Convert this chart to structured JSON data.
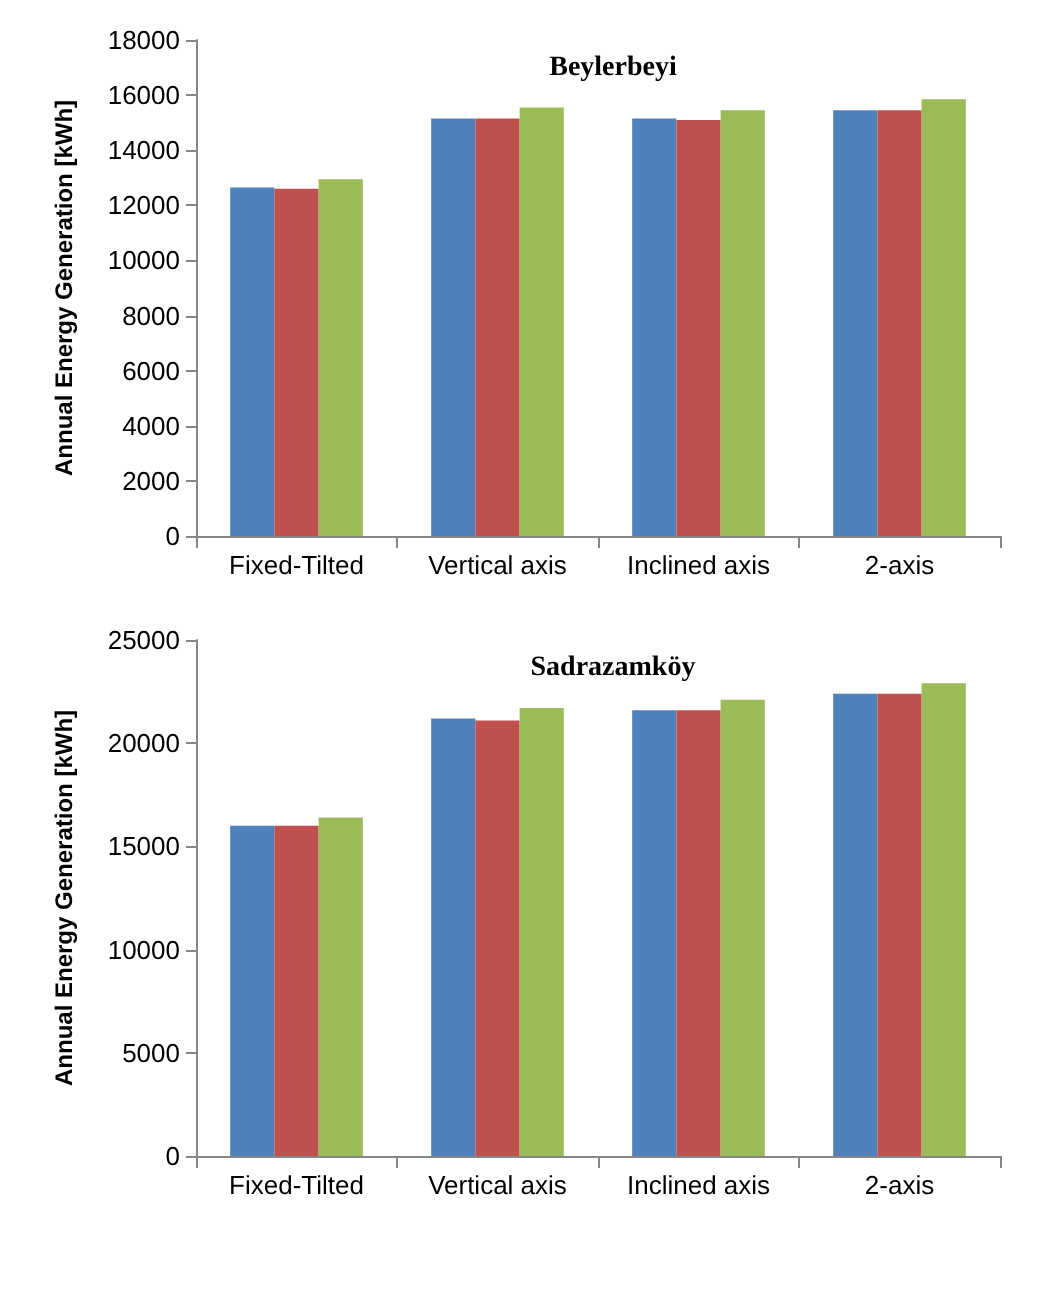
{
  "chart_data": [
    {
      "type": "bar",
      "title": "Beylerbeyi",
      "ylabel": "Annual Energy Generation [kWh]",
      "categories": [
        "Fixed-Tilted",
        "Vertical axis",
        "Inclined axis",
        "2-axis"
      ],
      "series": [
        {
          "color": "#4f81bd",
          "values": [
            12650,
            15150,
            15150,
            15450
          ]
        },
        {
          "color": "#c0504d",
          "values": [
            12600,
            15150,
            15100,
            15450
          ]
        },
        {
          "color": "#9bbb59",
          "values": [
            12950,
            15550,
            15450,
            15850
          ]
        }
      ],
      "ylim": [
        0,
        18000
      ],
      "yticks": [
        0,
        2000,
        4000,
        6000,
        8000,
        10000,
        12000,
        14000,
        16000,
        18000
      ],
      "grid": false
    },
    {
      "type": "bar",
      "title": "Sadrazamköy",
      "ylabel": "Annual Energy Generation [kWh]",
      "categories": [
        "Fixed-Tilted",
        "Vertical axis",
        "Inclined axis",
        "2-axis"
      ],
      "series": [
        {
          "color": "#4f81bd",
          "values": [
            16000,
            21200,
            21600,
            22400
          ]
        },
        {
          "color": "#c0504d",
          "values": [
            16000,
            21100,
            21600,
            22400
          ]
        },
        {
          "color": "#9bbb59",
          "values": [
            16400,
            21700,
            22100,
            22900
          ]
        }
      ],
      "ylim": [
        0,
        25000
      ],
      "yticks": [
        0,
        5000,
        10000,
        15000,
        20000,
        25000
      ],
      "grid": false
    }
  ]
}
